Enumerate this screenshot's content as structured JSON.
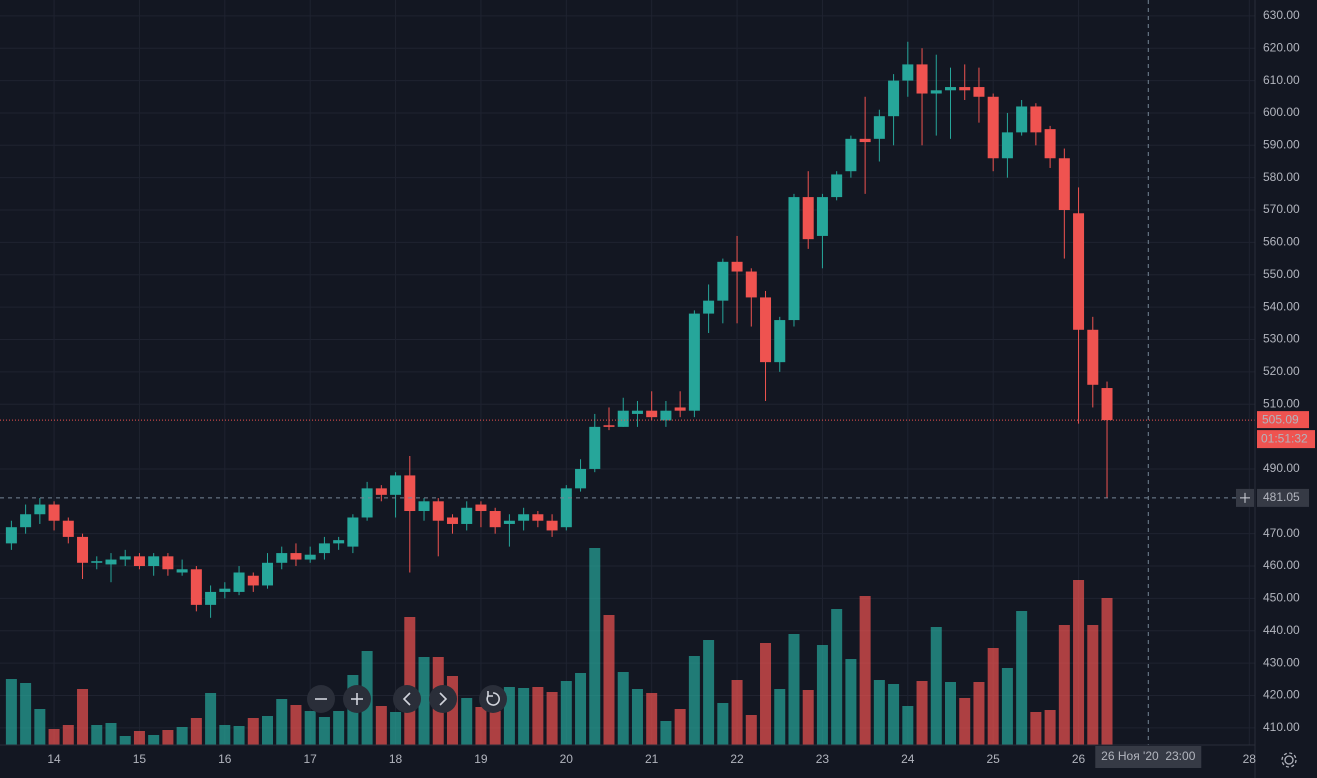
{
  "chart_data": {
    "type": "candlestick",
    "up_color": "#26a69a",
    "down_color": "#ef5350",
    "x": [
      -3,
      -2,
      -1,
      0,
      1,
      2,
      3,
      4,
      5,
      6,
      7,
      8,
      9,
      10,
      11,
      12,
      13,
      14,
      15,
      16,
      17,
      18,
      19,
      20,
      21,
      22,
      23,
      24,
      25,
      26,
      27,
      28,
      29,
      30,
      31,
      32,
      33,
      34,
      35,
      36,
      37,
      38,
      39,
      40,
      41,
      42,
      43,
      44,
      45,
      46,
      47,
      48,
      49,
      50,
      51,
      52,
      53,
      54,
      55,
      56,
      57,
      58,
      59,
      60,
      61,
      62,
      63,
      64,
      65,
      66,
      67,
      68,
      69,
      70,
      71,
      72,
      73,
      74
    ],
    "open": [
      467,
      472,
      476,
      479,
      474,
      469,
      461,
      460.5,
      462,
      463,
      460,
      463,
      458,
      459,
      448,
      452,
      452,
      457,
      454,
      461,
      464,
      462,
      464,
      467,
      466,
      475,
      484,
      482,
      488,
      477,
      480,
      475,
      473,
      479,
      477,
      473,
      474,
      476,
      474,
      472,
      484,
      490,
      503.5,
      503,
      507,
      508,
      505,
      509,
      508,
      538,
      542,
      554,
      551,
      543,
      523,
      536,
      574,
      562,
      574,
      582,
      592,
      592,
      599,
      610,
      615,
      606,
      607,
      608,
      608,
      605,
      586,
      594,
      602,
      595,
      586,
      569,
      533,
      515
    ],
    "high": [
      474,
      479,
      481,
      480,
      475,
      470,
      463,
      464,
      465,
      464,
      464,
      464,
      462,
      460,
      454,
      455,
      460,
      458,
      464,
      466,
      467,
      466,
      469,
      469,
      476,
      486,
      485,
      489,
      494,
      481,
      481,
      476,
      480,
      480,
      478,
      476,
      478,
      477,
      476,
      485,
      493,
      507,
      509,
      512,
      511,
      514,
      511,
      514,
      539,
      547,
      555,
      562,
      552,
      545,
      537,
      575,
      582,
      575,
      582,
      593,
      605,
      601,
      612,
      622,
      620,
      618,
      614,
      615,
      614,
      606,
      600,
      604,
      603,
      596,
      589,
      577,
      537,
      517
    ],
    "low": [
      465,
      470,
      473,
      471,
      467,
      456,
      459,
      455,
      460,
      459,
      457,
      457,
      457,
      446,
      444,
      450,
      451,
      452,
      453,
      459,
      460,
      461,
      462,
      465,
      464,
      474,
      480,
      475,
      458,
      474,
      463,
      470,
      471,
      472,
      470,
      466,
      471,
      472,
      469,
      471,
      483,
      489,
      502,
      503,
      503,
      505,
      503,
      506,
      506,
      532,
      535,
      535,
      534,
      511,
      520,
      534,
      558,
      552,
      573,
      580,
      575,
      585,
      590,
      605,
      590,
      593,
      592,
      604,
      597,
      582,
      580,
      593,
      590,
      583,
      555,
      504,
      509,
      481.05
    ],
    "close": [
      472,
      476,
      479,
      474,
      469,
      461,
      461.5,
      462,
      463,
      460,
      463,
      459,
      459,
      448,
      452,
      453,
      458,
      454,
      461,
      464,
      462,
      463.5,
      467,
      468,
      475,
      484,
      482,
      488,
      477,
      480,
      474,
      473,
      478,
      477,
      472,
      474,
      476,
      474,
      471,
      484,
      490,
      503,
      503,
      508,
      508,
      506,
      508,
      508,
      538,
      542,
      554,
      551,
      543,
      523,
      536,
      574,
      561,
      574,
      581,
      592,
      591,
      599,
      610,
      615,
      606,
      607,
      608,
      607,
      605,
      586,
      594,
      602,
      594,
      586,
      570,
      533,
      516,
      505.09
    ],
    "volume": [
      66,
      62,
      36,
      16,
      20,
      56,
      20,
      22,
      9,
      14,
      10,
      15,
      18,
      27,
      52,
      20,
      19,
      27,
      29,
      46,
      40,
      34,
      28,
      34,
      70,
      94,
      39,
      33,
      128,
      88,
      88,
      69,
      47,
      38,
      34,
      58,
      57,
      58,
      53,
      64,
      72,
      197,
      130,
      73,
      56,
      52,
      24,
      36,
      89,
      105,
      42,
      65,
      30,
      102,
      56,
      111,
      55,
      100,
      136,
      86,
      149,
      65,
      61,
      39,
      64,
      118,
      63,
      47,
      63,
      97,
      77,
      134,
      33,
      35,
      120,
      165,
      120,
      147
    ],
    "xlim": [
      -3.8,
      84.4
    ],
    "ylim": [
      404.7,
      634.9
    ],
    "xticks": [
      {
        "value": 0,
        "label": "14"
      },
      {
        "value": 6,
        "label": "15"
      },
      {
        "value": 12,
        "label": "16"
      },
      {
        "value": 18,
        "label": "17"
      },
      {
        "value": 24,
        "label": "18"
      },
      {
        "value": 30,
        "label": "19"
      },
      {
        "value": 36,
        "label": "20"
      },
      {
        "value": 42,
        "label": "21"
      },
      {
        "value": 48,
        "label": "22"
      },
      {
        "value": 54,
        "label": "23"
      },
      {
        "value": 60,
        "label": "24"
      },
      {
        "value": 66,
        "label": "25"
      },
      {
        "value": 72,
        "label": "26"
      },
      {
        "value": 84,
        "label": "28"
      }
    ],
    "yticks": [
      {
        "value": 630,
        "label": "630.00"
      },
      {
        "value": 620,
        "label": "620.00"
      },
      {
        "value": 610,
        "label": "610.00"
      },
      {
        "value": 600,
        "label": "600.00"
      },
      {
        "value": 590,
        "label": "590.00"
      },
      {
        "value": 580,
        "label": "580.00"
      },
      {
        "value": 570,
        "label": "570.00"
      },
      {
        "value": 560,
        "label": "560.00"
      },
      {
        "value": 550,
        "label": "550.00"
      },
      {
        "value": 540,
        "label": "540.00"
      },
      {
        "value": 530,
        "label": "530.00"
      },
      {
        "value": 520,
        "label": "520.00"
      },
      {
        "value": 510,
        "label": "510.00"
      },
      {
        "value": 490,
        "label": "490.00"
      },
      {
        "value": 470,
        "label": "470.00"
      },
      {
        "value": 460,
        "label": "460.00"
      },
      {
        "value": 450,
        "label": "450.00"
      },
      {
        "value": 440,
        "label": "440.00"
      },
      {
        "value": 430,
        "label": "430.00"
      },
      {
        "value": 420,
        "label": "420.00"
      },
      {
        "value": 410,
        "label": "410.00"
      }
    ],
    "grid": true,
    "last_price": 505.09,
    "countdown": "01:51:32",
    "crosshair": {
      "price": 481.05,
      "x": 76.9,
      "time": "26 Ноя '20  23:00"
    }
  }
}
